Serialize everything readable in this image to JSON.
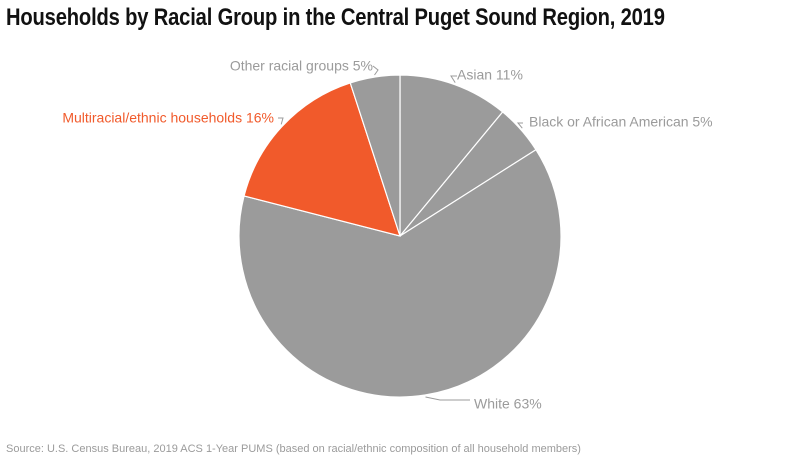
{
  "chart_title": "Households by Racial Group in the Central Puget Sound Region, 2019",
  "source_note": "Source: U.S. Census Bureau, 2019 ACS 1-Year PUMS (based on racial/ethnic composition of all household members)",
  "colors": {
    "default": "#9b9b9b",
    "highlight": "#f15a2b",
    "stroke": "#ffffff",
    "label_default": "#9b9b9b"
  },
  "chart_data": {
    "type": "pie",
    "title": "Households by Racial Group in the Central Puget Sound Region, 2019",
    "slices": [
      {
        "category": "Asian",
        "value": 11,
        "label": "Asian 11%",
        "highlight": false
      },
      {
        "category": "Black or African American",
        "value": 5,
        "label": "Black or African American 5%",
        "highlight": false
      },
      {
        "category": "White",
        "value": 63,
        "label": "White 63%",
        "highlight": false
      },
      {
        "category": "Multiracial/ethnic households",
        "value": 16,
        "label": "Multiracial/ethnic households 16%",
        "highlight": true
      },
      {
        "category": "Other racial groups",
        "value": 5,
        "label": "Other racial groups 5%",
        "highlight": false
      }
    ]
  }
}
